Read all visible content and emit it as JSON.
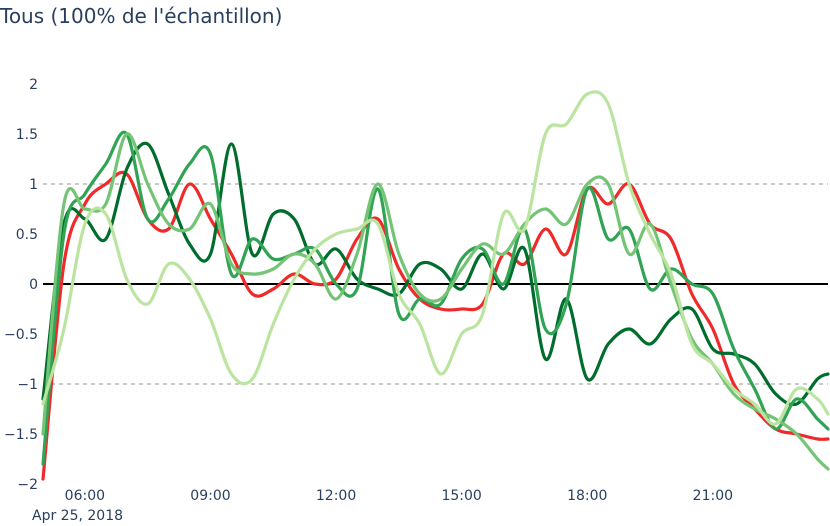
{
  "title": "Tous (100% de l'échantillon)",
  "chart_data": {
    "type": "line",
    "title": "Tous (100% de l'échantillon)",
    "xlabel": "",
    "ylabel": "",
    "x_axis_type": "date",
    "xlim": [
      "2018-04-25 05:00",
      "2018-04-25 23:45"
    ],
    "ylim": [
      -2,
      2
    ],
    "x_ticks": [
      "06:00",
      "09:00",
      "12:00",
      "15:00",
      "18:00",
      "21:00"
    ],
    "x_tick_values": [
      "2018-04-25 06:00",
      "2018-04-25 09:00",
      "2018-04-25 12:00",
      "2018-04-25 15:00",
      "2018-04-25 18:00",
      "2018-04-25 21:00"
    ],
    "x_subtitle": "Apr 25, 2018",
    "y_ticks": [
      "2",
      "1.5",
      "1",
      "0.5",
      "0",
      "−0.5",
      "−1",
      "−1.5",
      "−2"
    ],
    "y_tick_values": [
      2,
      1.5,
      1,
      0.5,
      0,
      -0.5,
      -1,
      -1.5,
      -2
    ],
    "reference_lines": [
      {
        "y": 1,
        "style": "dashed",
        "color": "#aaaaaa"
      },
      {
        "y": -1,
        "style": "dashed",
        "color": "#aaaaaa"
      },
      {
        "y": 0,
        "style": "solid",
        "color": "#000000"
      }
    ],
    "grid": false,
    "legend": "none",
    "x": [
      "05:00",
      "05:30",
      "06:00",
      "06:30",
      "07:00",
      "07:30",
      "08:00",
      "08:30",
      "09:00",
      "09:30",
      "10:00",
      "10:30",
      "11:00",
      "11:30",
      "12:00",
      "12:30",
      "13:00",
      "13:30",
      "14:00",
      "14:30",
      "15:00",
      "15:30",
      "16:00",
      "16:30",
      "17:00",
      "17:30",
      "18:00",
      "18:30",
      "19:00",
      "19:30",
      "20:00",
      "20:30",
      "21:00",
      "21:30",
      "22:00",
      "22:30",
      "23:00",
      "23:30",
      "23:45"
    ],
    "series": [
      {
        "color": "#ee2a2a",
        "values": [
          -1.95,
          0.2,
          0.8,
          1.0,
          1.1,
          0.65,
          0.55,
          1.0,
          0.65,
          0.3,
          -0.1,
          -0.05,
          0.1,
          0.0,
          0.05,
          0.45,
          0.65,
          0.15,
          -0.15,
          -0.25,
          -0.25,
          -0.2,
          0.3,
          0.2,
          0.55,
          0.3,
          0.95,
          0.8,
          1.0,
          0.6,
          0.45,
          -0.1,
          -0.45,
          -1.0,
          -1.25,
          -1.45,
          -1.5,
          -1.55,
          -1.55
        ]
      },
      {
        "color": "#006d2c",
        "values": [
          -1.15,
          0.6,
          0.65,
          0.45,
          1.15,
          1.4,
          0.9,
          0.4,
          0.3,
          1.4,
          0.3,
          0.7,
          0.65,
          0.2,
          0.35,
          0.05,
          -0.05,
          -0.1,
          0.2,
          0.15,
          -0.05,
          0.3,
          -0.05,
          0.35,
          -0.75,
          -0.15,
          -0.95,
          -0.6,
          -0.45,
          -0.6,
          -0.35,
          -0.25,
          -0.65,
          -0.7,
          -0.8,
          -1.1,
          -1.2,
          -0.95,
          -0.9
        ]
      },
      {
        "color": "#31a354",
        "values": [
          -1.8,
          0.5,
          0.9,
          1.2,
          1.5,
          0.65,
          0.85,
          1.2,
          1.3,
          0.1,
          0.45,
          0.25,
          0.3,
          0.35,
          0.0,
          -0.05,
          0.95,
          -0.3,
          -0.15,
          -0.2,
          0.25,
          0.35,
          0.0,
          0.55,
          -0.45,
          -0.2,
          0.95,
          0.45,
          0.55,
          -0.05,
          0.15,
          0.0,
          -0.1,
          -0.65,
          -1.05,
          -1.45,
          -1.15,
          -1.35,
          -1.45
        ]
      },
      {
        "color": "#74c476",
        "values": [
          -1.5,
          0.8,
          0.75,
          0.8,
          1.5,
          1.0,
          0.6,
          0.55,
          0.8,
          0.2,
          0.1,
          0.15,
          0.3,
          0.2,
          -0.15,
          0.3,
          1.0,
          0.3,
          -0.1,
          -0.15,
          0.15,
          0.4,
          0.3,
          0.6,
          0.75,
          0.6,
          1.0,
          1.0,
          0.3,
          0.6,
          0.0,
          -0.55,
          -0.8,
          -1.1,
          -1.25,
          -1.35,
          -1.5,
          -1.75,
          -1.85
        ]
      },
      {
        "color": "#bae4a0",
        "values": [
          -1.2,
          -0.45,
          0.6,
          0.7,
          0.05,
          -0.2,
          0.2,
          0.05,
          -0.35,
          -0.9,
          -0.95,
          -0.4,
          0.05,
          0.35,
          0.5,
          0.55,
          0.6,
          -0.1,
          -0.4,
          -0.9,
          -0.5,
          -0.3,
          0.7,
          0.55,
          1.5,
          1.6,
          1.9,
          1.8,
          1.0,
          0.5,
          0.1,
          -0.6,
          -0.8,
          -1.05,
          -1.2,
          -1.4,
          -1.05,
          -1.15,
          -1.3
        ]
      }
    ]
  }
}
